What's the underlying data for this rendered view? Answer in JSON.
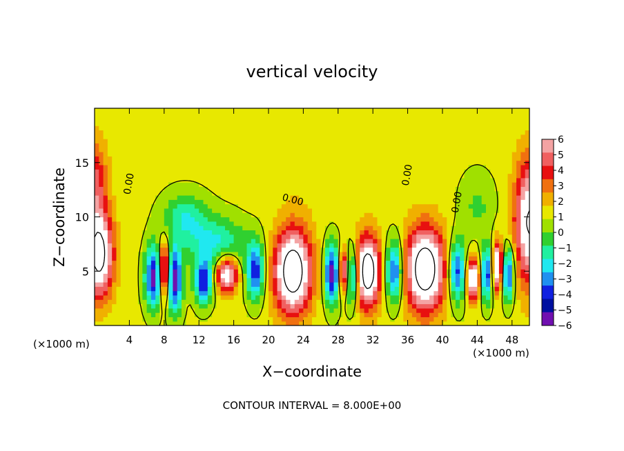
{
  "chart_data": {
    "type": "heatmap",
    "title": "vertical velocity",
    "xlabel": "X−coordinate",
    "ylabel": "Z−coordinate",
    "x_unit_left": "(×1000 m)",
    "x_unit_right": "(×1000 m)",
    "xlim": [
      0,
      50
    ],
    "ylim": [
      0,
      20
    ],
    "x_ticks": [
      4,
      8,
      12,
      16,
      20,
      24,
      28,
      32,
      36,
      40,
      44,
      48
    ],
    "y_ticks": [
      5,
      10,
      15
    ],
    "footer": "CONTOUR INTERVAL = 8.000E+00",
    "colorbar": {
      "ticks": [
        "6",
        "5",
        "4",
        "3",
        "2",
        "1",
        "0",
        "−1",
        "−2",
        "−3",
        "−4",
        "−5",
        "−6"
      ],
      "colors": [
        "#f4a3a3",
        "#f06060",
        "#e81010",
        "#f07010",
        "#f0b000",
        "#e8e800",
        "#a0e000",
        "#30d030",
        "#20f0a0",
        "#20e8f0",
        "#2090f0",
        "#1020e0",
        "#0010a0",
        "#7010b0"
      ]
    },
    "contour_labels": [
      "0.00",
      "0.00",
      "0.00",
      "0.00"
    ],
    "field": {
      "background_value": 0.3,
      "features": [
        {
          "x": 0.5,
          "z": 6.5,
          "sx": 1.6,
          "sz": 3.8,
          "amp": 9
        },
        {
          "x": 6.8,
          "z": 4.5,
          "sx": 1.0,
          "sz": 2.8,
          "amp": -7
        },
        {
          "x": 8.0,
          "z": 5.0,
          "sx": 0.6,
          "sz": 2.5,
          "amp": 8
        },
        {
          "x": 9.2,
          "z": 4.2,
          "sx": 0.9,
          "sz": 3.0,
          "amp": -7
        },
        {
          "x": 10.4,
          "z": 10.0,
          "sx": 2.5,
          "sz": 2.2,
          "amp": -3
        },
        {
          "x": 14.0,
          "z": 7.5,
          "sx": 3.5,
          "sz": 2.5,
          "amp": -3.5
        },
        {
          "x": 12.5,
          "z": 4.0,
          "sx": 1.0,
          "sz": 2.0,
          "amp": -6
        },
        {
          "x": 15.2,
          "z": 4.8,
          "sx": 1.2,
          "sz": 1.6,
          "amp": 8
        },
        {
          "x": 18.5,
          "z": 5.0,
          "sx": 1.0,
          "sz": 2.6,
          "amp": -6
        },
        {
          "x": 22.8,
          "z": 5.0,
          "sx": 2.1,
          "sz": 3.8,
          "amp": 10
        },
        {
          "x": 27.3,
          "z": 4.8,
          "sx": 0.9,
          "sz": 2.8,
          "amp": -7
        },
        {
          "x": 28.6,
          "z": 5.0,
          "sx": 0.6,
          "sz": 2.0,
          "amp": 7
        },
        {
          "x": 29.6,
          "z": 4.6,
          "sx": 0.8,
          "sz": 2.6,
          "amp": -6
        },
        {
          "x": 31.4,
          "z": 5.0,
          "sx": 1.4,
          "sz": 3.2,
          "amp": 10
        },
        {
          "x": 34.5,
          "z": 5.0,
          "sx": 1.0,
          "sz": 2.8,
          "amp": -6
        },
        {
          "x": 38.0,
          "z": 5.2,
          "sx": 2.2,
          "sz": 3.8,
          "amp": 10
        },
        {
          "x": 41.7,
          "z": 5.0,
          "sx": 1.0,
          "sz": 2.8,
          "amp": -6
        },
        {
          "x": 43.5,
          "z": 4.3,
          "sx": 0.8,
          "sz": 1.9,
          "amp": 8
        },
        {
          "x": 45.1,
          "z": 4.8,
          "sx": 0.7,
          "sz": 2.5,
          "amp": -6
        },
        {
          "x": 46.3,
          "z": 5.5,
          "sx": 0.6,
          "sz": 2.2,
          "amp": 8
        },
        {
          "x": 47.6,
          "z": 4.8,
          "sx": 0.7,
          "sz": 2.5,
          "amp": -6
        },
        {
          "x": 50.0,
          "z": 9.5,
          "sx": 1.7,
          "sz": 5.5,
          "amp": 8
        },
        {
          "x": 0.0,
          "z": 13.0,
          "sx": 1.5,
          "sz": 4.0,
          "amp": 4
        },
        {
          "x": 44.0,
          "z": 11.0,
          "sx": 2.0,
          "sz": 3.0,
          "amp": -1.5
        },
        {
          "x": 25.0,
          "z": 14.0,
          "sx": 6.0,
          "sz": 4.0,
          "amp": 0.5
        }
      ]
    }
  }
}
